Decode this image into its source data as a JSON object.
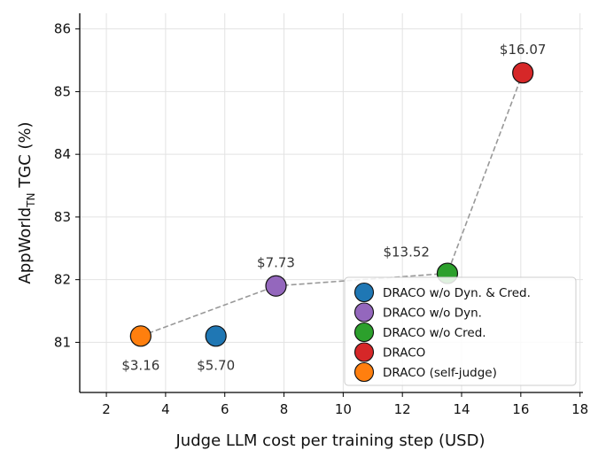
{
  "chart_data": {
    "type": "scatter",
    "xlabel": "Judge LLM cost per training step (USD)",
    "ylabel": {
      "prefix": "AppWorld",
      "subscript": "TN",
      "suffix": " TGC (%)"
    },
    "xlim": [
      1.1,
      18.1
    ],
    "ylim": [
      80.2,
      86.25
    ],
    "xticks": [
      2,
      4,
      6,
      8,
      10,
      12,
      14,
      16,
      18
    ],
    "yticks": [
      81,
      82,
      83,
      84,
      85,
      86
    ],
    "grid": true,
    "legend_position": "bottom-right",
    "series": [
      {
        "name": "DRACO w/o Dyn. & Cred.",
        "color": "#1f77b4",
        "x": 5.7,
        "y": 81.1,
        "label": "$5.70",
        "label_pos": "below"
      },
      {
        "name": "DRACO w/o Dyn.",
        "color": "#9467bd",
        "x": 7.73,
        "y": 81.9,
        "label": "$7.73",
        "label_pos": "above"
      },
      {
        "name": "DRACO w/o Cred.",
        "color": "#2ca02c",
        "x": 13.52,
        "y": 82.1,
        "label": "$13.52",
        "label_pos": "above-left"
      },
      {
        "name": "DRACO",
        "color": "#d62728",
        "x": 16.07,
        "y": 85.3,
        "label": "$16.07",
        "label_pos": "above"
      },
      {
        "name": "DRACO (self-judge)",
        "color": "#ff7f0e",
        "x": 3.16,
        "y": 81.1,
        "label": "$3.16",
        "label_pos": "below"
      }
    ],
    "frontier_line": {
      "style": "dashed",
      "color": "#999999",
      "points": [
        [
          3.16,
          81.1
        ],
        [
          7.73,
          81.9
        ],
        [
          13.52,
          82.1
        ],
        [
          16.07,
          85.3
        ]
      ]
    }
  }
}
